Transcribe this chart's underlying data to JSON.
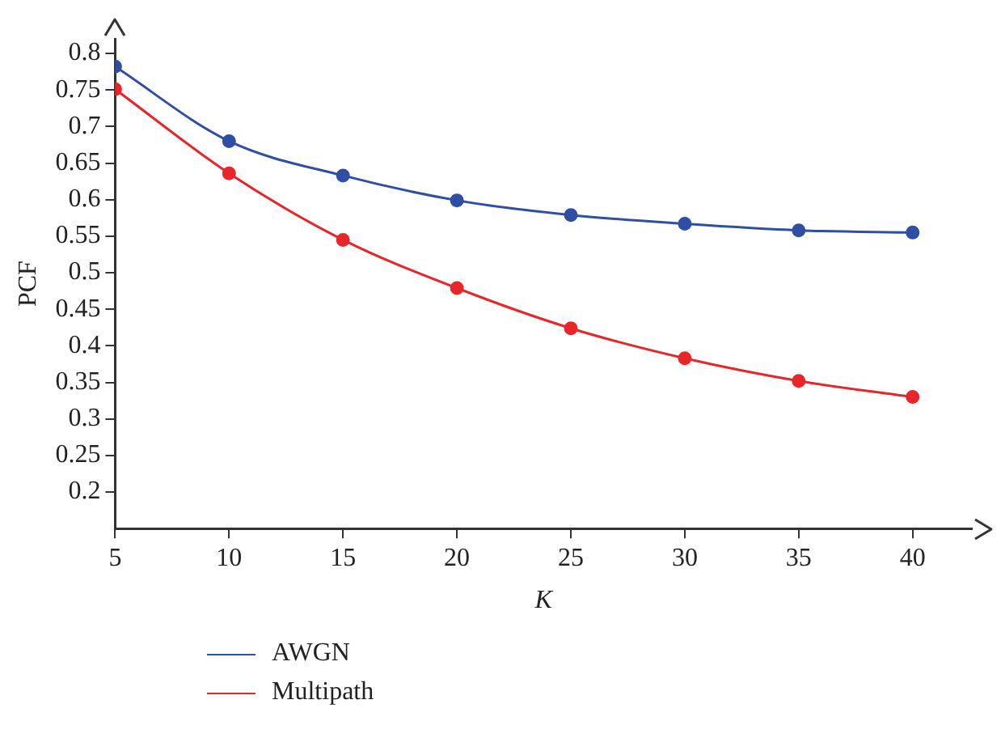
{
  "chart_data": {
    "type": "line",
    "xlabel": "K",
    "ylabel": "PCF",
    "x": [
      5,
      10,
      15,
      20,
      25,
      30,
      35,
      40
    ],
    "series": [
      {
        "name": "AWGN",
        "color": "#2e4fa3",
        "values": [
          0.782,
          0.68,
          0.633,
          0.599,
          0.579,
          0.567,
          0.558,
          0.555
        ]
      },
      {
        "name": "Multipath",
        "color": "#e8262a",
        "values": [
          0.751,
          0.636,
          0.545,
          0.479,
          0.424,
          0.383,
          0.352,
          0.33
        ]
      }
    ],
    "xlim": [
      5,
      42.6
    ],
    "xticks": [
      5,
      10,
      15,
      20,
      25,
      30,
      35,
      40
    ],
    "ylim": [
      0.15,
      0.82
    ],
    "yticks": [
      0.2,
      0.25,
      0.3,
      0.35,
      0.4,
      0.45,
      0.5,
      0.55,
      0.6,
      0.65,
      0.7,
      0.75,
      0.8
    ],
    "grid": false,
    "legend": "bottom left",
    "marker": "circle",
    "line_style": "solid"
  }
}
